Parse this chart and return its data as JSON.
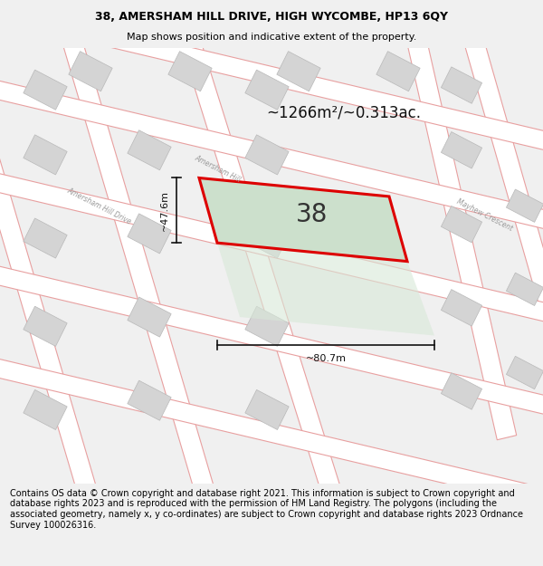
{
  "title_line1": "38, AMERSHAM HILL DRIVE, HIGH WYCOMBE, HP13 6QY",
  "title_line2": "Map shows position and indicative extent of the property.",
  "footer_text": "Contains OS data © Crown copyright and database right 2021. This information is subject to Crown copyright and database rights 2023 and is reproduced with the permission of HM Land Registry. The polygons (including the associated geometry, namely x, y co-ordinates) are subject to Crown copyright and database rights 2023 Ordnance Survey 100026316.",
  "area_text": "~1266m²/~0.313ac.",
  "label_38": "38",
  "dim_width": "~80.7m",
  "dim_height": "~47.6m",
  "map_bg": "#ffffff",
  "fig_bg": "#f0f0f0",
  "road_line_color": "#e8a0a0",
  "building_fill": "#d4d4d4",
  "building_edge": "#b8b8b8",
  "property_fill": "#cce0cc",
  "property_fill_ext": "#d8e8d8",
  "property_edge": "#dd0000",
  "dim_color": "#111111",
  "street_label_color": "#999999",
  "area_fontsize": 12,
  "label_fontsize": 20,
  "dim_fontsize": 8
}
